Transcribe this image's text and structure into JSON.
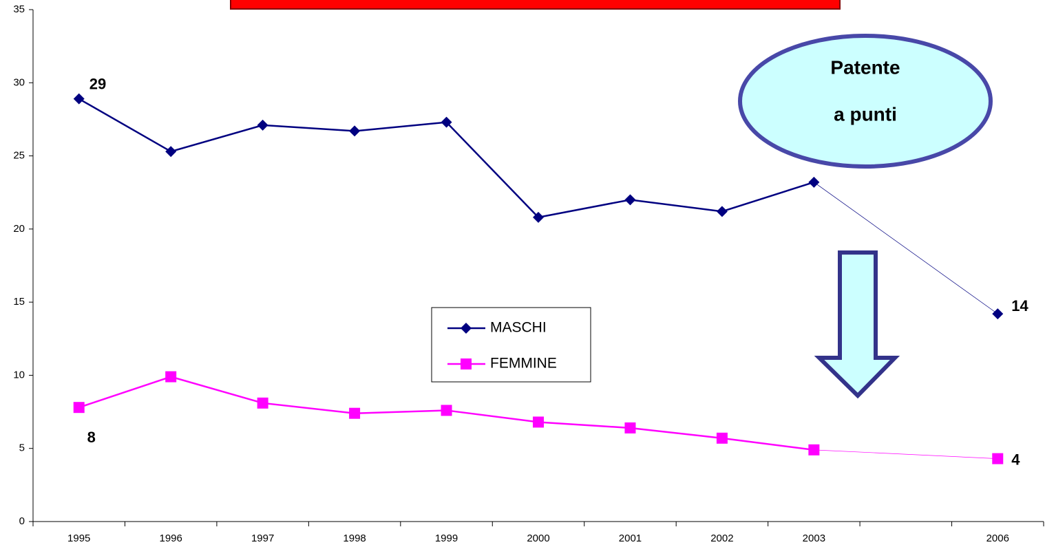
{
  "chart_data": {
    "type": "line",
    "categories": [
      "1995",
      "1996",
      "1997",
      "1998",
      "1999",
      "2000",
      "2001",
      "2002",
      "2003",
      null,
      "2006"
    ],
    "series": [
      {
        "name": "MASCHI",
        "color": "#000080",
        "marker": "diamond",
        "values": [
          28.9,
          25.3,
          27.1,
          26.7,
          27.3,
          20.8,
          22.0,
          21.2,
          23.2,
          null,
          14.2
        ],
        "value_labels": [
          "29",
          null,
          null,
          null,
          null,
          null,
          null,
          null,
          null,
          null,
          "14"
        ]
      },
      {
        "name": "FEMMINE",
        "color": "#ff00ff",
        "marker": "square",
        "values": [
          7.8,
          9.9,
          8.1,
          7.4,
          7.6,
          6.8,
          6.4,
          5.7,
          4.9,
          null,
          4.3
        ],
        "value_labels": [
          "8",
          null,
          null,
          null,
          null,
          null,
          null,
          null,
          null,
          null,
          "4"
        ]
      }
    ],
    "ylim": [
      0,
      35
    ],
    "yticks": [
      0,
      5,
      10,
      15,
      20,
      25,
      30,
      35
    ],
    "grid": false,
    "legend": "center",
    "annotation": [
      "Patente",
      "a punti"
    ]
  }
}
